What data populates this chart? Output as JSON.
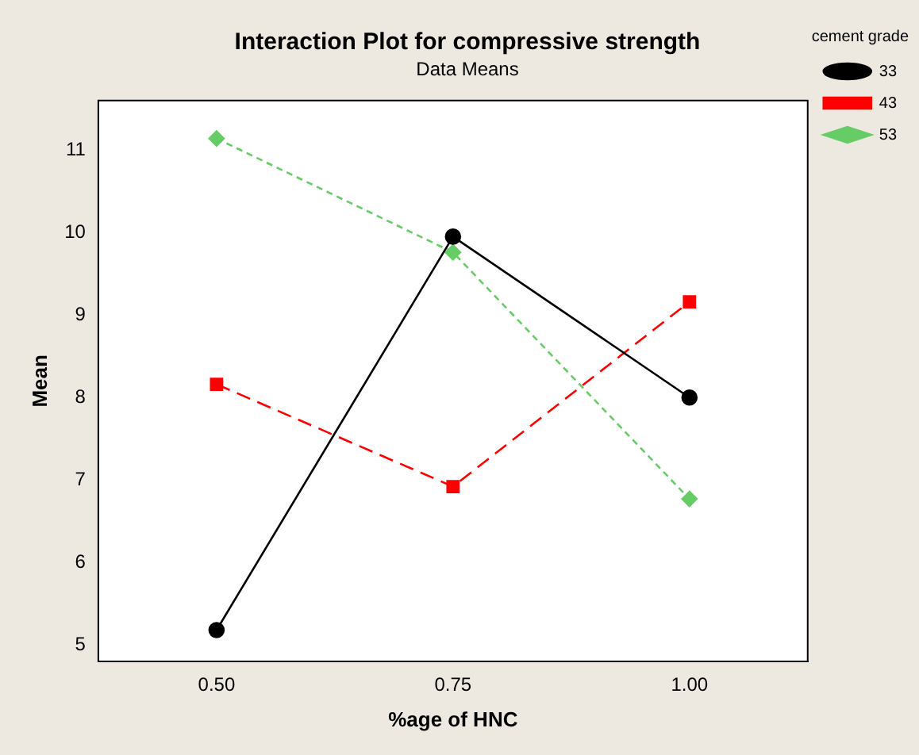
{
  "chart_data": {
    "type": "line",
    "title": "Interaction Plot for compressive strength",
    "subtitle": "Data Means",
    "xlabel": "%age of HNC",
    "ylabel": "Mean",
    "legend_title": "cement grade",
    "legend": "right",
    "grid": false,
    "categories": [
      "0.50",
      "0.75",
      "1.00"
    ],
    "ylim": [
      4.8,
      11.6
    ],
    "yticks": [
      5,
      6,
      7,
      8,
      9,
      10,
      11
    ],
    "series": [
      {
        "name": "33",
        "color": "#000000",
        "marker": "circle",
        "line_style": "solid",
        "values": [
          5.18,
          9.95,
          8.0
        ]
      },
      {
        "name": "43",
        "color": "#ff0000",
        "marker": "square",
        "line_style": "dashed",
        "values": [
          8.16,
          6.92,
          9.16
        ]
      },
      {
        "name": "53",
        "color": "#66cc66",
        "marker": "diamond",
        "line_style": "dotted",
        "values": [
          11.14,
          9.76,
          6.77
        ]
      }
    ]
  }
}
